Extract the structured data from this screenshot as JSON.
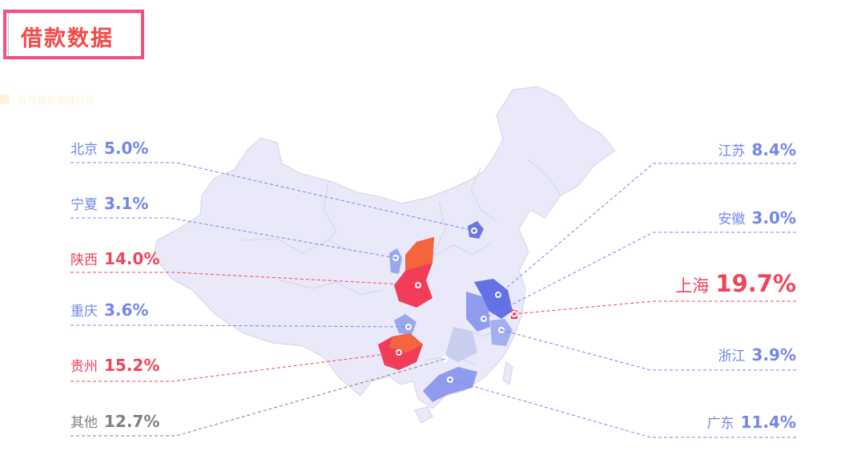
{
  "title": "借款数据",
  "subtitle": "当月借款地域分布",
  "colors": {
    "accent_red": "#f0445b",
    "accent_blue": "#7486ec",
    "other_gray": "#808080",
    "map_base": "#e8e8f8"
  },
  "regions": {
    "beijing": {
      "name": "北京",
      "pct": "5.0%"
    },
    "ningxia": {
      "name": "宁夏",
      "pct": "3.1%"
    },
    "shaanxi": {
      "name": "陕西",
      "pct": "14.0%"
    },
    "chongqing": {
      "name": "重庆",
      "pct": "3.6%"
    },
    "guizhou": {
      "name": "贵州",
      "pct": "15.2%"
    },
    "other": {
      "name": "其他",
      "pct": "12.7%"
    },
    "jiangsu": {
      "name": "江苏",
      "pct": "8.4%"
    },
    "anhui": {
      "name": "安徽",
      "pct": "3.0%"
    },
    "shanghai": {
      "name": "上海",
      "pct": "19.7%"
    },
    "zhejiang": {
      "name": "浙江",
      "pct": "3.9%"
    },
    "guangdong": {
      "name": "广东",
      "pct": "11.4%"
    }
  }
}
